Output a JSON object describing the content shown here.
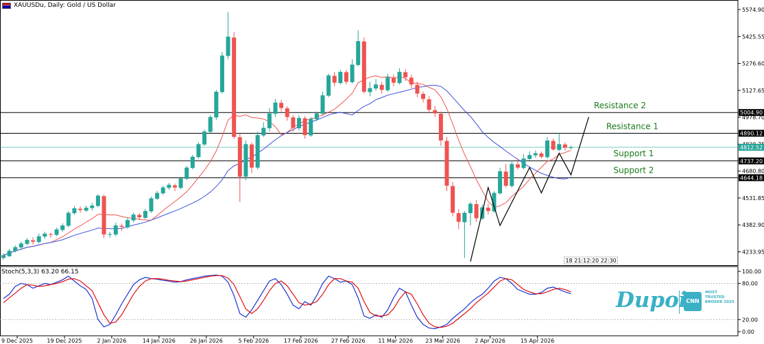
{
  "header": {
    "symbol_text": "XAUUSDu, Daily:  Gold / US Dollar"
  },
  "stoch": {
    "label": "Stoch(5,3,3) 63.20 66.15"
  },
  "logo": {
    "word": "Dupoin",
    "badge": "CNN",
    "tagline": "MOST TRUSTED BROKER 2025"
  },
  "colors": {
    "bull": "#26a69a",
    "bear": "#ef5350",
    "ma_fast": "#ef5350",
    "ma_slow": "#3f51d8",
    "stoch_k": "#1a33d0",
    "stoch_d": "#e01010"
  },
  "chart_data": {
    "type": "candlestick",
    "title": "XAUUSDu, Daily:  Gold / US Dollar",
    "ylim": [
      4160,
      5620
    ],
    "price_ticks": [
      "5574.90",
      "5425.55",
      "5276.60",
      "5127.65",
      "4978.70",
      "4829.75",
      "4680.80",
      "4531.85",
      "4382.90",
      "4233.95"
    ],
    "x_labels": [
      "9 Dec 2025",
      "19 Dec 2025",
      "2 Jan 2026",
      "14 Jan 2026",
      "26 Jan 2026",
      "5 Feb 2026",
      "17 Feb 2026",
      "27 Feb 2026",
      "11 Mar 2026",
      "23 Mar 2026",
      "2 Apr 2026",
      "15 Apr 2026"
    ],
    "levels": [
      {
        "name": "Resistance 2",
        "price": 5004.9,
        "tag": "5004.90"
      },
      {
        "name": "Resistance 1",
        "price": 4890.12,
        "tag": "4890.12"
      },
      {
        "name": "Support 1",
        "price": 4737.2,
        "tag": "4737.20"
      },
      {
        "name": "Support 2",
        "price": 4644.18,
        "tag": "4644.18"
      }
    ],
    "current_price": {
      "price": 4812.52,
      "tag": "4812.52"
    },
    "countdown": "18 21:12:20 22:30",
    "candles": [
      [
        4200,
        4215,
        4190,
        4225
      ],
      [
        4210,
        4240,
        4205,
        4250
      ],
      [
        4238,
        4260,
        4230,
        4270
      ],
      [
        4258,
        4280,
        4245,
        4290
      ],
      [
        4278,
        4300,
        4270,
        4310
      ],
      [
        4298,
        4290,
        4275,
        4315
      ],
      [
        4288,
        4320,
        4280,
        4335
      ],
      [
        4318,
        4335,
        4305,
        4345
      ],
      [
        4332,
        4330,
        4312,
        4340
      ],
      [
        4328,
        4358,
        4320,
        4368
      ],
      [
        4355,
        4380,
        4345,
        4392
      ],
      [
        4378,
        4450,
        4370,
        4460
      ],
      [
        4448,
        4475,
        4438,
        4488
      ],
      [
        4472,
        4465,
        4450,
        4485
      ],
      [
        4462,
        4478,
        4455,
        4490
      ],
      [
        4476,
        4490,
        4462,
        4505
      ],
      [
        4488,
        4545,
        4480,
        4552
      ],
      [
        4542,
        4330,
        4310,
        4550
      ],
      [
        4328,
        4332,
        4312,
        4345
      ],
      [
        4330,
        4380,
        4320,
        4395
      ],
      [
        4378,
        4372,
        4350,
        4390
      ],
      [
        4370,
        4410,
        4362,
        4422
      ],
      [
        4408,
        4440,
        4398,
        4452
      ],
      [
        4438,
        4425,
        4410,
        4448
      ],
      [
        4422,
        4460,
        4415,
        4472
      ],
      [
        4458,
        4530,
        4450,
        4540
      ],
      [
        4528,
        4560,
        4520,
        4572
      ],
      [
        4558,
        4590,
        4550,
        4600
      ],
      [
        4588,
        4605,
        4578,
        4615
      ],
      [
        4602,
        4590,
        4570,
        4612
      ],
      [
        4588,
        4640,
        4580,
        4650
      ],
      [
        4638,
        4700,
        4630,
        4710
      ],
      [
        4698,
        4760,
        4690,
        4770
      ],
      [
        4758,
        4830,
        4750,
        4840
      ],
      [
        4828,
        4900,
        4820,
        4910
      ],
      [
        4898,
        4980,
        4890,
        4990
      ],
      [
        4978,
        5120,
        4965,
        5130
      ],
      [
        5118,
        5320,
        5110,
        5340
      ],
      [
        5318,
        5425,
        5300,
        5560
      ],
      [
        5420,
        4870,
        4860,
        5450
      ],
      [
        4868,
        4650,
        4510,
        4890
      ],
      [
        4650,
        4830,
        4630,
        4850
      ],
      [
        4828,
        4700,
        4670,
        4840
      ],
      [
        4700,
        4880,
        4690,
        4900
      ],
      [
        4878,
        4920,
        4870,
        4950
      ],
      [
        4918,
        5000,
        4900,
        5030
      ],
      [
        4998,
        5060,
        4980,
        5080
      ],
      [
        5058,
        5030,
        5010,
        5075
      ],
      [
        5028,
        4980,
        4960,
        5040
      ],
      [
        4978,
        4920,
        4900,
        4990
      ],
      [
        4918,
        4975,
        4905,
        4990
      ],
      [
        4973,
        4880,
        4860,
        4985
      ],
      [
        4878,
        4970,
        4870,
        4980
      ],
      [
        4968,
        5000,
        4958,
        5010
      ],
      [
        4998,
        5100,
        4990,
        5120
      ],
      [
        5098,
        5210,
        5090,
        5220
      ],
      [
        5208,
        5170,
        5150,
        5230
      ],
      [
        5168,
        5230,
        5160,
        5240
      ],
      [
        5228,
        5175,
        5160,
        5240
      ],
      [
        5173,
        5270,
        5165,
        5300
      ],
      [
        5268,
        5400,
        5260,
        5460
      ],
      [
        5398,
        5120,
        5110,
        5420
      ],
      [
        5118,
        5140,
        5095,
        5175
      ],
      [
        5138,
        5160,
        5125,
        5190
      ],
      [
        5158,
        5130,
        5110,
        5175
      ],
      [
        5128,
        5200,
        5120,
        5220
      ],
      [
        5198,
        5170,
        5150,
        5215
      ],
      [
        5168,
        5230,
        5160,
        5250
      ],
      [
        5228,
        5200,
        5180,
        5245
      ],
      [
        5198,
        5160,
        5140,
        5215
      ],
      [
        5158,
        5110,
        5090,
        5175
      ],
      [
        5108,
        5080,
        5060,
        5120
      ],
      [
        5078,
        5020,
        5000,
        5095
      ],
      [
        5018,
        5000,
        4980,
        5040
      ],
      [
        4998,
        4850,
        4820,
        5010
      ],
      [
        4848,
        4600,
        4570,
        4870
      ],
      [
        4598,
        4450,
        4430,
        4620
      ],
      [
        4448,
        4400,
        4360,
        4470
      ],
      [
        4398,
        4450,
        4200,
        4460
      ],
      [
        4448,
        4500,
        4380,
        4510
      ],
      [
        4498,
        4420,
        4400,
        4520
      ],
      [
        4418,
        4480,
        4410,
        4495
      ],
      [
        4478,
        4460,
        4440,
        4500
      ],
      [
        4458,
        4560,
        4450,
        4570
      ],
      [
        4558,
        4680,
        4550,
        4700
      ],
      [
        4678,
        4600,
        4590,
        4720
      ],
      [
        4598,
        4720,
        4590,
        4740
      ],
      [
        4718,
        4700,
        4690,
        4750
      ],
      [
        4698,
        4750,
        4690,
        4775
      ],
      [
        4748,
        4770,
        4740,
        4790
      ],
      [
        4768,
        4780,
        4755,
        4795
      ],
      [
        4778,
        4760,
        4750,
        4790
      ],
      [
        4758,
        4850,
        4750,
        4870
      ],
      [
        4848,
        4800,
        4795,
        4860
      ],
      [
        4798,
        4830,
        4790,
        4890
      ],
      [
        4828,
        4810,
        4795,
        4840
      ],
      [
        4808,
        4812,
        4802,
        4822
      ]
    ],
    "series": [
      {
        "name": "MA fast"
      },
      {
        "name": "MA slow"
      }
    ],
    "zigzag": [
      [
        79,
        4180
      ],
      [
        82,
        4590
      ],
      [
        84,
        4380
      ],
      [
        89,
        4700
      ],
      [
        91,
        4560
      ],
      [
        94,
        4780
      ],
      [
        96,
        4660
      ],
      [
        99,
        4980
      ]
    ],
    "stochastic": {
      "ylim": [
        0,
        100
      ],
      "ticks": [
        "100.00",
        "80.00",
        "20.00",
        "0.00"
      ],
      "k": [
        55,
        62,
        75,
        80,
        78,
        72,
        76,
        80,
        78,
        82,
        86,
        92,
        84,
        76,
        70,
        55,
        20,
        8,
        12,
        28,
        46,
        62,
        78,
        86,
        90,
        88,
        87,
        85,
        84,
        82,
        83,
        86,
        88,
        90,
        92,
        93,
        94,
        92,
        82,
        60,
        30,
        24,
        36,
        52,
        68,
        84,
        88,
        78,
        62,
        44,
        38,
        50,
        44,
        60,
        80,
        92,
        88,
        82,
        84,
        78,
        56,
        26,
        22,
        28,
        24,
        36,
        56,
        72,
        66,
        44,
        24,
        12,
        6,
        5,
        8,
        12,
        22,
        30,
        38,
        48,
        56,
        62,
        72,
        84,
        90,
        88,
        80,
        70,
        66,
        62,
        62,
        65,
        72,
        74,
        70,
        66,
        63
      ],
      "d": [
        48,
        56,
        64,
        72,
        78,
        77,
        75,
        76,
        78,
        80,
        83,
        87,
        88,
        84,
        76,
        68,
        48,
        28,
        14,
        16,
        28,
        45,
        62,
        75,
        84,
        88,
        88,
        87,
        85,
        84,
        83,
        84,
        86,
        88,
        90,
        92,
        93,
        93,
        89,
        78,
        58,
        38,
        30,
        38,
        52,
        68,
        80,
        84,
        76,
        62,
        48,
        44,
        46,
        50,
        62,
        78,
        88,
        88,
        84,
        82,
        72,
        50,
        32,
        26,
        26,
        28,
        38,
        54,
        66,
        62,
        46,
        28,
        14,
        8,
        7,
        9,
        14,
        22,
        30,
        38,
        48,
        56,
        64,
        74,
        84,
        88,
        86,
        78,
        70,
        66,
        63,
        63,
        66,
        70,
        72,
        70,
        66
      ]
    }
  }
}
